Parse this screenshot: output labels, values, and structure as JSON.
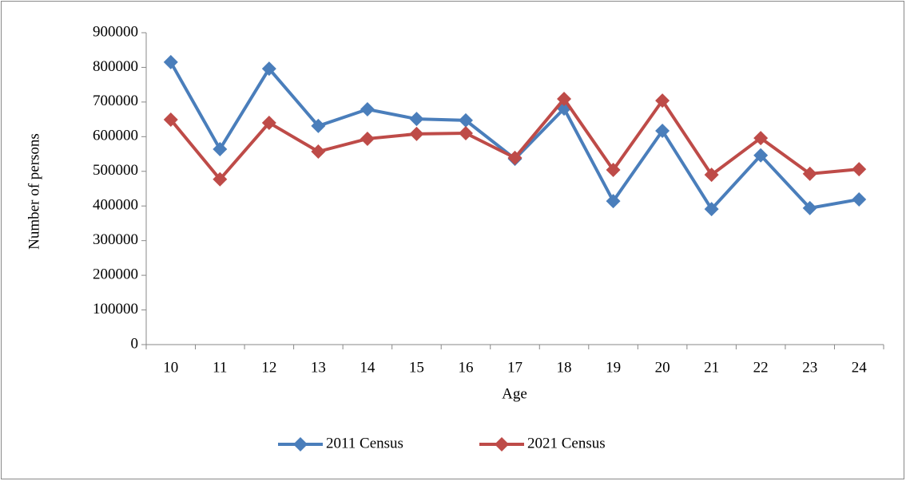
{
  "chart_data": {
    "type": "line",
    "x_label": "Age",
    "y_label": "Number of persons",
    "categories": [
      "10",
      "11",
      "12",
      "13",
      "14",
      "15",
      "16",
      "17",
      "18",
      "19",
      "20",
      "21",
      "22",
      "23",
      "24"
    ],
    "series": [
      {
        "name": "2011 Census",
        "color": "#4a7ebb",
        "values": [
          815000,
          564000,
          796000,
          631000,
          679000,
          651000,
          647000,
          536000,
          681000,
          414000,
          617000,
          391000,
          546000,
          394000,
          419000
        ]
      },
      {
        "name": "2021 Census",
        "color": "#be4b48",
        "values": [
          649000,
          477000,
          640000,
          557000,
          594000,
          608000,
          610000,
          539000,
          709000,
          504000,
          704000,
          490000,
          596000,
          493000,
          506000
        ]
      }
    ],
    "ylim": [
      0,
      900000
    ],
    "yticks": [
      0,
      100000,
      200000,
      300000,
      400000,
      500000,
      600000,
      700000,
      800000,
      900000
    ],
    "legend": "bottom"
  }
}
